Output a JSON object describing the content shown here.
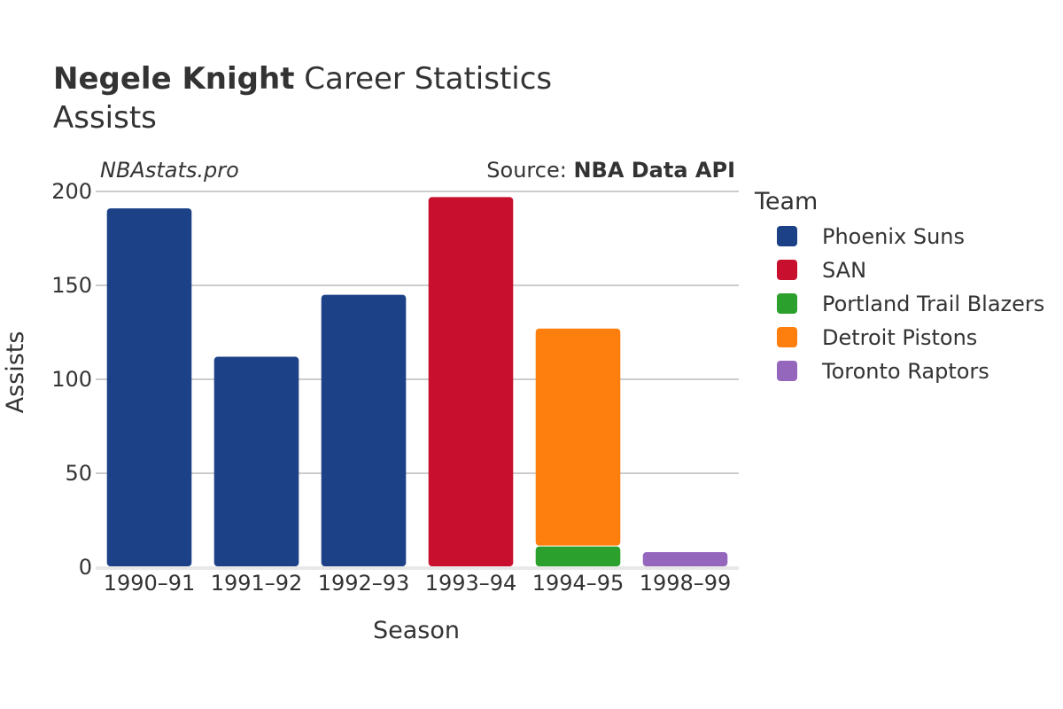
{
  "header": {
    "title_bold": "Negele Knight",
    "title_rest": " Career Statistics",
    "subtitle": "Assists"
  },
  "watermark": "NBAstats.pro",
  "source": {
    "prefix": "Source: ",
    "name": "NBA Data API"
  },
  "legend": {
    "title": "Team"
  },
  "chart_data": {
    "type": "bar",
    "stacked": true,
    "title": "Negele Knight Career Statistics",
    "subtitle": "Assists",
    "xlabel": "Season",
    "ylabel": "Assists",
    "ylim": [
      0,
      200
    ],
    "yticks": [
      0,
      50,
      100,
      150,
      200
    ],
    "grid": true,
    "legend_position": "right",
    "categories": [
      "1990–91",
      "1991–92",
      "1992–93",
      "1993–94",
      "1994–95",
      "1998–99"
    ],
    "series": [
      {
        "name": "Phoenix Suns",
        "color": "#1c4187",
        "values": [
          191,
          112,
          145,
          0,
          0,
          0
        ]
      },
      {
        "name": "SAN",
        "color": "#c8102e",
        "values": [
          0,
          0,
          0,
          197,
          0,
          0
        ]
      },
      {
        "name": "Portland Trail Blazers",
        "color": "#2ca02c",
        "values": [
          0,
          0,
          0,
          0,
          11,
          0
        ]
      },
      {
        "name": "Detroit Pistons",
        "color": "#ff7f0e",
        "values": [
          0,
          0,
          0,
          0,
          116,
          0
        ]
      },
      {
        "name": "Toronto Raptors",
        "color": "#9467bd",
        "values": [
          0,
          0,
          0,
          0,
          0,
          8
        ]
      }
    ]
  }
}
